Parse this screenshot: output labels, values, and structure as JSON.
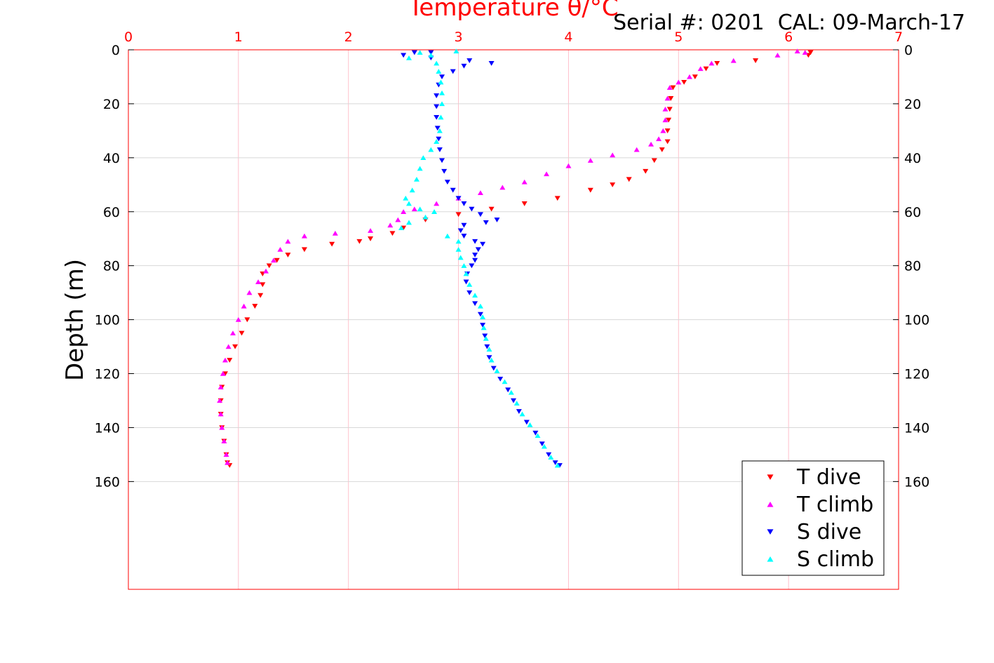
{
  "chart_data": {
    "type": "scatter",
    "title": "Temperature θ/°C",
    "subtitle": "Serial #: 0201  CAL: 09-March-17",
    "ylabel": "Depth (m)",
    "xlabel": "",
    "xlim": [
      0,
      7
    ],
    "ylim": [
      0,
      200
    ],
    "y_reversed": true,
    "x_axis_position": "top",
    "x_ticks": [
      0,
      1,
      2,
      3,
      4,
      5,
      6,
      7
    ],
    "x_tick_labels": [
      "0",
      "1",
      "2",
      "3",
      "4",
      "5",
      "6",
      "7"
    ],
    "y_ticks": [
      0,
      20,
      40,
      60,
      80,
      100,
      120,
      140,
      160
    ],
    "y_tick_labels": [
      "0",
      "20",
      "40",
      "60",
      "80",
      "100",
      "120",
      "140",
      "160"
    ],
    "grid": true,
    "legend_position": "bottom-right",
    "colors": {
      "axis": "#ff0000",
      "grid": "#ffc0cb",
      "t_dive": "#ff0000",
      "t_climb": "#ff00ff",
      "s_dive": "#0000ff",
      "s_climb": "#00ffff"
    },
    "series": [
      {
        "name": "T dive",
        "marker": "triangle-down",
        "color": "#ff0000",
        "points": [
          [
            6.2,
            1
          ],
          [
            6.18,
            2
          ],
          [
            5.7,
            4
          ],
          [
            5.35,
            5
          ],
          [
            5.25,
            7
          ],
          [
            5.15,
            10
          ],
          [
            5.05,
            12
          ],
          [
            4.95,
            14
          ],
          [
            4.93,
            18
          ],
          [
            4.92,
            22
          ],
          [
            4.91,
            26
          ],
          [
            4.9,
            30
          ],
          [
            4.9,
            34
          ],
          [
            4.85,
            37
          ],
          [
            4.78,
            41
          ],
          [
            4.7,
            45
          ],
          [
            4.55,
            48
          ],
          [
            4.4,
            50
          ],
          [
            4.2,
            52
          ],
          [
            3.9,
            55
          ],
          [
            3.6,
            57
          ],
          [
            3.3,
            59
          ],
          [
            3.0,
            61
          ],
          [
            2.7,
            63
          ],
          [
            2.5,
            66
          ],
          [
            2.4,
            68
          ],
          [
            2.2,
            70
          ],
          [
            2.1,
            71
          ],
          [
            1.85,
            72
          ],
          [
            1.6,
            74
          ],
          [
            1.45,
            76
          ],
          [
            1.35,
            78
          ],
          [
            1.28,
            80
          ],
          [
            1.22,
            83
          ],
          [
            1.22,
            87
          ],
          [
            1.2,
            91
          ],
          [
            1.15,
            95
          ],
          [
            1.08,
            100
          ],
          [
            1.03,
            105
          ],
          [
            0.97,
            110
          ],
          [
            0.92,
            115
          ],
          [
            0.88,
            120
          ],
          [
            0.85,
            125
          ],
          [
            0.84,
            130
          ],
          [
            0.84,
            135
          ],
          [
            0.85,
            140
          ],
          [
            0.87,
            145
          ],
          [
            0.89,
            150
          ],
          [
            0.9,
            153
          ],
          [
            0.92,
            154
          ]
        ]
      },
      {
        "name": "T climb",
        "marker": "triangle-up",
        "color": "#ff00ff",
        "points": [
          [
            6.15,
            1
          ],
          [
            6.08,
            0.5
          ],
          [
            5.9,
            2
          ],
          [
            5.5,
            4
          ],
          [
            5.3,
            5
          ],
          [
            5.2,
            7
          ],
          [
            5.1,
            10
          ],
          [
            5.0,
            12
          ],
          [
            4.92,
            14
          ],
          [
            4.9,
            18
          ],
          [
            4.88,
            22
          ],
          [
            4.88,
            26
          ],
          [
            4.86,
            30
          ],
          [
            4.82,
            33
          ],
          [
            4.75,
            35
          ],
          [
            4.62,
            37
          ],
          [
            4.4,
            39
          ],
          [
            4.2,
            41
          ],
          [
            4.0,
            43
          ],
          [
            3.8,
            46
          ],
          [
            3.6,
            49
          ],
          [
            3.4,
            51
          ],
          [
            3.2,
            53
          ],
          [
            3.0,
            55
          ],
          [
            2.8,
            57
          ],
          [
            2.6,
            59
          ],
          [
            2.5,
            60
          ],
          [
            2.45,
            63
          ],
          [
            2.38,
            65
          ],
          [
            2.2,
            67
          ],
          [
            1.88,
            68
          ],
          [
            1.6,
            69
          ],
          [
            1.45,
            71
          ],
          [
            1.38,
            74
          ],
          [
            1.32,
            78
          ],
          [
            1.25,
            82
          ],
          [
            1.18,
            86
          ],
          [
            1.1,
            90
          ],
          [
            1.05,
            95
          ],
          [
            1.0,
            100
          ],
          [
            0.95,
            105
          ],
          [
            0.91,
            110
          ],
          [
            0.88,
            115
          ],
          [
            0.86,
            120
          ],
          [
            0.84,
            125
          ],
          [
            0.83,
            130
          ],
          [
            0.84,
            135
          ],
          [
            0.85,
            140
          ],
          [
            0.87,
            145
          ],
          [
            0.89,
            150
          ],
          [
            0.9,
            153
          ]
        ]
      },
      {
        "name": "S dive",
        "marker": "triangle-down",
        "color": "#0000ff",
        "points": [
          [
            2.5,
            2
          ],
          [
            2.6,
            1
          ],
          [
            2.75,
            1
          ],
          [
            2.75,
            3
          ],
          [
            3.1,
            4
          ],
          [
            3.3,
            5
          ],
          [
            3.05,
            6
          ],
          [
            2.95,
            8
          ],
          [
            2.85,
            10
          ],
          [
            2.82,
            13
          ],
          [
            2.8,
            17
          ],
          [
            2.8,
            21
          ],
          [
            2.8,
            25
          ],
          [
            2.81,
            29
          ],
          [
            2.82,
            33
          ],
          [
            2.83,
            37
          ],
          [
            2.85,
            41
          ],
          [
            2.87,
            45
          ],
          [
            2.9,
            49
          ],
          [
            2.95,
            52
          ],
          [
            3.0,
            55
          ],
          [
            3.05,
            57
          ],
          [
            3.12,
            59
          ],
          [
            3.2,
            61
          ],
          [
            3.35,
            63
          ],
          [
            3.25,
            64
          ],
          [
            3.05,
            65
          ],
          [
            3.02,
            67
          ],
          [
            3.05,
            69
          ],
          [
            3.15,
            71
          ],
          [
            3.22,
            72
          ],
          [
            3.18,
            74
          ],
          [
            3.15,
            76
          ],
          [
            3.15,
            78
          ],
          [
            3.12,
            80
          ],
          [
            3.08,
            83
          ],
          [
            3.07,
            86
          ],
          [
            3.1,
            90
          ],
          [
            3.15,
            94
          ],
          [
            3.2,
            98
          ],
          [
            3.22,
            102
          ],
          [
            3.24,
            106
          ],
          [
            3.26,
            110
          ],
          [
            3.28,
            114
          ],
          [
            3.32,
            118
          ],
          [
            3.38,
            122
          ],
          [
            3.45,
            126
          ],
          [
            3.5,
            130
          ],
          [
            3.55,
            134
          ],
          [
            3.62,
            138
          ],
          [
            3.7,
            142
          ],
          [
            3.76,
            146
          ],
          [
            3.82,
            150
          ],
          [
            3.88,
            153
          ],
          [
            3.92,
            154
          ]
        ]
      },
      {
        "name": "S climb",
        "marker": "triangle-up",
        "color": "#00ffff",
        "points": [
          [
            2.55,
            3
          ],
          [
            2.65,
            1
          ],
          [
            2.75,
            2
          ],
          [
            2.98,
            0.5
          ],
          [
            2.8,
            5
          ],
          [
            2.82,
            8
          ],
          [
            2.84,
            12
          ],
          [
            2.85,
            16
          ],
          [
            2.85,
            20
          ],
          [
            2.84,
            25
          ],
          [
            2.83,
            30
          ],
          [
            2.8,
            34
          ],
          [
            2.75,
            37
          ],
          [
            2.68,
            40
          ],
          [
            2.65,
            44
          ],
          [
            2.62,
            48
          ],
          [
            2.58,
            52
          ],
          [
            2.52,
            55
          ],
          [
            2.55,
            57
          ],
          [
            2.65,
            59
          ],
          [
            2.78,
            60
          ],
          [
            2.7,
            62
          ],
          [
            2.55,
            64
          ],
          [
            2.48,
            66
          ],
          [
            2.9,
            69
          ],
          [
            3.0,
            71
          ],
          [
            3.0,
            74
          ],
          [
            3.02,
            77
          ],
          [
            3.05,
            80
          ],
          [
            3.07,
            83
          ],
          [
            3.1,
            87
          ],
          [
            3.15,
            91
          ],
          [
            3.2,
            95
          ],
          [
            3.22,
            99
          ],
          [
            3.23,
            103
          ],
          [
            3.25,
            107
          ],
          [
            3.28,
            111
          ],
          [
            3.3,
            115
          ],
          [
            3.35,
            119
          ],
          [
            3.42,
            123
          ],
          [
            3.48,
            127
          ],
          [
            3.53,
            131
          ],
          [
            3.58,
            135
          ],
          [
            3.65,
            139
          ],
          [
            3.72,
            143
          ],
          [
            3.78,
            147
          ],
          [
            3.84,
            151
          ],
          [
            3.9,
            154
          ]
        ]
      }
    ]
  }
}
